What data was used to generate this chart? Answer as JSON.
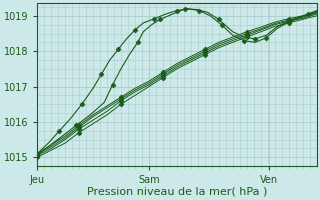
{
  "bg_color": "#cce8e8",
  "grid_color": "#aacccc",
  "line_color": "#1a5c1a",
  "marker_color": "#1a5c1a",
  "xlabel": "Pression niveau de la mer( hPa )",
  "xlabel_fontsize": 8,
  "tick_label_fontsize": 7,
  "day_labels": [
    "Jeu",
    "Sam",
    "Ven"
  ],
  "day_positions": [
    0.0,
    0.4,
    0.83
  ],
  "ylim": [
    1014.75,
    1019.35
  ],
  "yticks": [
    1015,
    1016,
    1017,
    1018,
    1019
  ],
  "xlim": [
    0.0,
    1.0
  ],
  "n_points": 100,
  "series": [
    {
      "x": [
        0.0,
        0.05,
        0.1,
        0.15,
        0.2,
        0.25,
        0.3,
        0.35,
        0.4,
        0.45,
        0.5,
        0.55,
        0.6,
        0.65,
        0.7,
        0.75,
        0.8,
        0.85,
        0.9,
        0.95,
        1.0
      ],
      "y": [
        1015.0,
        1015.2,
        1015.4,
        1015.7,
        1015.95,
        1016.2,
        1016.5,
        1016.75,
        1017.0,
        1017.25,
        1017.5,
        1017.7,
        1017.9,
        1018.1,
        1018.25,
        1018.4,
        1018.55,
        1018.7,
        1018.8,
        1018.9,
        1019.0
      ],
      "marker_every": 3,
      "lw": 0.7
    },
    {
      "x": [
        0.0,
        0.05,
        0.1,
        0.15,
        0.2,
        0.25,
        0.3,
        0.35,
        0.4,
        0.45,
        0.5,
        0.55,
        0.6,
        0.65,
        0.7,
        0.75,
        0.8,
        0.85,
        0.9,
        0.95,
        1.0
      ],
      "y": [
        1015.05,
        1015.25,
        1015.5,
        1015.8,
        1016.05,
        1016.3,
        1016.6,
        1016.85,
        1017.05,
        1017.3,
        1017.55,
        1017.75,
        1017.95,
        1018.15,
        1018.3,
        1018.45,
        1018.6,
        1018.75,
        1018.85,
        1018.93,
        1019.05
      ],
      "marker_every": 3,
      "lw": 0.7
    },
    {
      "x": [
        0.0,
        0.05,
        0.1,
        0.15,
        0.2,
        0.25,
        0.3,
        0.35,
        0.4,
        0.45,
        0.5,
        0.55,
        0.6,
        0.65,
        0.7,
        0.75,
        0.8,
        0.85,
        0.9,
        0.95,
        1.0
      ],
      "y": [
        1015.1,
        1015.3,
        1015.55,
        1015.85,
        1016.15,
        1016.4,
        1016.65,
        1016.9,
        1017.1,
        1017.35,
        1017.6,
        1017.8,
        1018.0,
        1018.2,
        1018.35,
        1018.5,
        1018.63,
        1018.78,
        1018.88,
        1018.96,
        1019.08
      ],
      "marker_every": 3,
      "lw": 0.7
    },
    {
      "x": [
        0.0,
        0.05,
        0.1,
        0.15,
        0.2,
        0.25,
        0.3,
        0.35,
        0.4,
        0.45,
        0.5,
        0.55,
        0.6,
        0.65,
        0.7,
        0.75,
        0.8,
        0.85,
        0.9,
        0.95,
        1.0
      ],
      "y": [
        1015.1,
        1015.35,
        1015.6,
        1015.9,
        1016.2,
        1016.45,
        1016.7,
        1016.95,
        1017.15,
        1017.4,
        1017.65,
        1017.85,
        1018.05,
        1018.25,
        1018.4,
        1018.55,
        1018.68,
        1018.82,
        1018.92,
        1019.0,
        1019.12
      ],
      "marker_every": 3,
      "lw": 0.7
    },
    {
      "x": [
        0.0,
        0.04,
        0.09,
        0.14,
        0.19,
        0.24,
        0.27,
        0.3,
        0.33,
        0.36,
        0.38,
        0.41,
        0.44,
        0.47,
        0.5,
        0.53,
        0.57,
        0.61,
        0.65,
        0.7,
        0.74,
        0.78,
        0.82,
        0.86,
        0.9,
        0.95,
        1.0
      ],
      "y": [
        1015.05,
        1015.3,
        1015.6,
        1015.9,
        1016.2,
        1016.55,
        1017.05,
        1017.5,
        1017.9,
        1018.25,
        1018.55,
        1018.75,
        1018.9,
        1019.0,
        1019.1,
        1019.2,
        1019.18,
        1019.1,
        1018.9,
        1018.55,
        1018.4,
        1018.35,
        1018.45,
        1018.7,
        1018.85,
        1019.0,
        1019.1
      ],
      "marker_every": 3,
      "lw": 0.8
    },
    {
      "x": [
        0.0,
        0.04,
        0.08,
        0.12,
        0.16,
        0.2,
        0.23,
        0.26,
        0.29,
        0.32,
        0.35,
        0.38,
        0.42,
        0.46,
        0.5,
        0.54,
        0.58,
        0.62,
        0.66,
        0.7,
        0.74,
        0.78,
        0.82,
        0.86,
        0.9,
        0.94,
        0.97,
        1.0
      ],
      "y": [
        1015.1,
        1015.4,
        1015.75,
        1016.1,
        1016.5,
        1016.95,
        1017.35,
        1017.75,
        1018.05,
        1018.35,
        1018.6,
        1018.8,
        1018.92,
        1019.05,
        1019.15,
        1019.2,
        1019.15,
        1019.0,
        1018.75,
        1018.45,
        1018.3,
        1018.25,
        1018.38,
        1018.65,
        1018.82,
        1018.95,
        1019.05,
        1019.15
      ],
      "marker_every": 2,
      "lw": 0.8
    }
  ]
}
